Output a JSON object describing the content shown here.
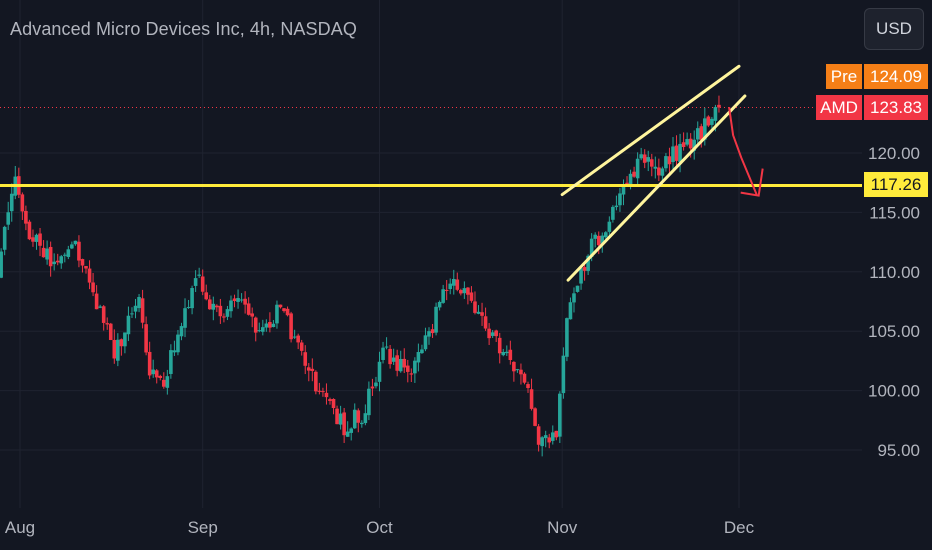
{
  "header": {
    "symbol_title": "Advanced Micro Devices Inc, 4h, NASDAQ",
    "currency": "USD"
  },
  "price_tags": {
    "pre_label": "Pre",
    "pre_value": "124.09",
    "last_label": "AMD",
    "last_value": "123.83",
    "level_value": "117.26"
  },
  "colors": {
    "background": "#131722",
    "up": "#26a69a",
    "down": "#f23645",
    "support_line": "#ffeb3b",
    "channel_line": "#fff59d",
    "forecast_arrow": "#f23645",
    "pre_badge": "#f57f17",
    "last_badge": "#f23645"
  },
  "chart_data": {
    "type": "candlestick",
    "title": "Advanced Micro Devices Inc, 4h, NASDAQ",
    "x_ticks": [
      "Aug",
      "Sep",
      "Oct",
      "Nov",
      "Dec"
    ],
    "y_ticks": [
      "120.00",
      "115.00",
      "110.00",
      "105.00",
      "100.00",
      "95.00"
    ],
    "ylim": [
      91.5,
      126.5
    ],
    "currency": "USD",
    "last_price": 123.83,
    "premarket_price": 124.09,
    "horizontal_level": 117.26,
    "grid": true,
    "series_waypoints": [
      {
        "date": "Jul 24",
        "price": 113.5
      },
      {
        "date": "Jul 26",
        "price": 116
      },
      {
        "date": "Jul 28",
        "price": 109.5
      },
      {
        "date": "Jul 31",
        "price": 118.5
      },
      {
        "date": "Aug 2",
        "price": 113.5
      },
      {
        "date": "Aug 7",
        "price": 110.5
      },
      {
        "date": "Aug 10",
        "price": 112.5
      },
      {
        "date": "Aug 15",
        "price": 106
      },
      {
        "date": "Aug 17",
        "price": 103
      },
      {
        "date": "Aug 21",
        "price": 108
      },
      {
        "date": "Aug 23",
        "price": 102
      },
      {
        "date": "Aug 25",
        "price": 100.5
      },
      {
        "date": "Aug 28",
        "price": 104.5
      },
      {
        "date": "Aug 31",
        "price": 109.5
      },
      {
        "date": "Sep 4",
        "price": 106
      },
      {
        "date": "Sep 7",
        "price": 108.5
      },
      {
        "date": "Sep 11",
        "price": 104.5
      },
      {
        "date": "Sep 14",
        "price": 107
      },
      {
        "date": "Sep 18",
        "price": 103
      },
      {
        "date": "Sep 21",
        "price": 99.5
      },
      {
        "date": "Sep 25",
        "price": 97
      },
      {
        "date": "Sep 28",
        "price": 98
      },
      {
        "date": "Oct 2",
        "price": 103.5
      },
      {
        "date": "Oct 6",
        "price": 101
      },
      {
        "date": "Oct 10",
        "price": 105.5
      },
      {
        "date": "Oct 13",
        "price": 109.5
      },
      {
        "date": "Oct 16",
        "price": 108
      },
      {
        "date": "Oct 19",
        "price": 105
      },
      {
        "date": "Oct 23",
        "price": 103
      },
      {
        "date": "Oct 26",
        "price": 100
      },
      {
        "date": "Oct 28",
        "price": 95
      },
      {
        "date": "Oct 31",
        "price": 96.5
      },
      {
        "date": "Nov 2",
        "price": 107
      },
      {
        "date": "Nov 6",
        "price": 112
      },
      {
        "date": "Nov 9",
        "price": 114
      },
      {
        "date": "Nov 12",
        "price": 118
      },
      {
        "date": "Nov 15",
        "price": 119.5
      },
      {
        "date": "Nov 17",
        "price": 118
      },
      {
        "date": "Nov 21",
        "price": 120.5
      },
      {
        "date": "Nov 24",
        "price": 121.5
      },
      {
        "date": "Nov 28",
        "price": 123.8
      }
    ],
    "annotations": [
      {
        "type": "horizontal_line",
        "price": 117.26
      },
      {
        "type": "trend_line",
        "from": {
          "date": "Nov 1",
          "price": 116.5
        },
        "to": {
          "date": "Dec 1",
          "price": 127.3
        }
      },
      {
        "type": "trend_line",
        "from": {
          "date": "Nov 2",
          "price": 109.3
        },
        "to": {
          "date": "Dec 2",
          "price": 124.8
        }
      },
      {
        "type": "arrow",
        "direction": "down",
        "from": {
          "date": "Nov 30",
          "price": 121.5
        },
        "to": {
          "date": "Dec 4",
          "price": 116.5
        }
      }
    ]
  }
}
